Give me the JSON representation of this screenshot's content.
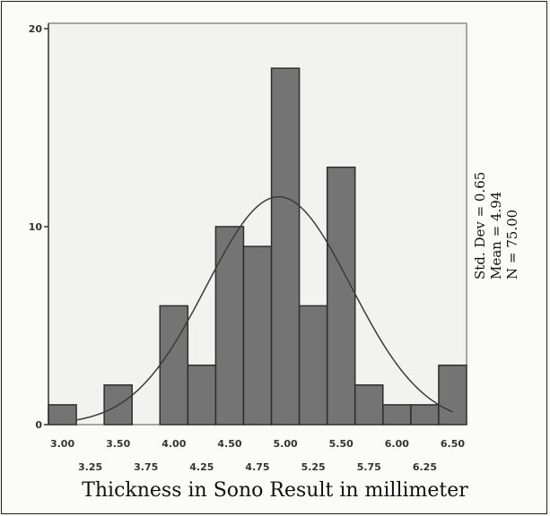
{
  "chart_data": {
    "type": "bar",
    "bin_edges": [
      3.0,
      3.25,
      3.5,
      3.75,
      4.0,
      4.25,
      4.5,
      4.75,
      5.0,
      5.25,
      5.5,
      5.75,
      6.0,
      6.25,
      6.5
    ],
    "bins": [
      {
        "from": 2.875,
        "to": 3.125,
        "count": 1
      },
      {
        "from": 3.375,
        "to": 3.625,
        "count": 2
      },
      {
        "from": 3.875,
        "to": 4.125,
        "count": 6
      },
      {
        "from": 4.125,
        "to": 4.375,
        "count": 3
      },
      {
        "from": 4.375,
        "to": 4.625,
        "count": 10
      },
      {
        "from": 4.625,
        "to": 4.875,
        "count": 9
      },
      {
        "from": 4.875,
        "to": 5.125,
        "count": 18
      },
      {
        "from": 5.125,
        "to": 5.375,
        "count": 6
      },
      {
        "from": 5.375,
        "to": 5.625,
        "count": 13
      },
      {
        "from": 5.625,
        "to": 5.875,
        "count": 2
      },
      {
        "from": 5.875,
        "to": 6.125,
        "count": 1
      },
      {
        "from": 6.125,
        "to": 6.375,
        "count": 1
      },
      {
        "from": 6.375,
        "to": 6.625,
        "count": 3
      }
    ],
    "xticks_row1": [
      "3.00",
      "3.50",
      "4.00",
      "4.50",
      "5.00",
      "5.50",
      "6.00",
      "6.50"
    ],
    "xticks_row2": [
      "3.25",
      "3.75",
      "4.25",
      "4.75",
      "5.25",
      "5.75",
      "6.25"
    ],
    "yticks": [
      "0",
      "10",
      "20"
    ],
    "ylim": [
      0,
      20
    ],
    "xlim": [
      2.875,
      6.625
    ],
    "normal_curve": {
      "mean": 4.94,
      "std_dev": 0.65,
      "n": 75.0
    },
    "xlabel": "Thickness in Sono Result in millimeter",
    "stats": [
      "Std. Dev = 0.65",
      "Mean = 4.94",
      "N = 75.00"
    ],
    "colors": {
      "bar_fill": "#747474",
      "bar_stroke": "#2e2e2e",
      "curve": "#3a3a3a",
      "axis": "#333333"
    }
  }
}
